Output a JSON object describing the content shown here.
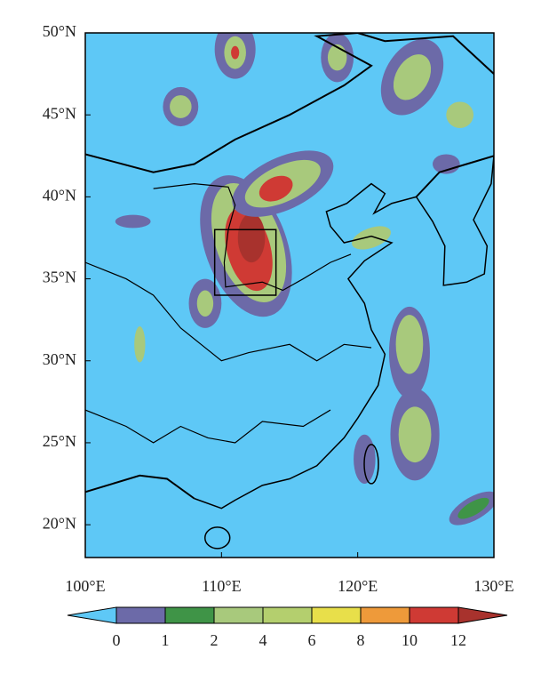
{
  "chart_data": {
    "type": "map",
    "xlim": [
      100,
      130
    ],
    "ylim": [
      18,
      50
    ],
    "xticks": [
      {
        "value": 100,
        "label": "100°E"
      },
      {
        "value": 110,
        "label": "110°E"
      },
      {
        "value": 120,
        "label": "120°E"
      },
      {
        "value": 130,
        "label": "130°E"
      }
    ],
    "yticks": [
      {
        "value": 20,
        "label": "20°N"
      },
      {
        "value": 25,
        "label": "25°N"
      },
      {
        "value": 30,
        "label": "30°N"
      },
      {
        "value": 35,
        "label": "35°N"
      },
      {
        "value": 40,
        "label": "40°N"
      },
      {
        "value": 45,
        "label": "45°N"
      },
      {
        "value": 50,
        "label": "50°N"
      }
    ],
    "colorbar": {
      "levels": [
        0,
        1,
        2,
        4,
        6,
        8,
        10,
        12
      ],
      "colors": [
        "#5ec8f6",
        "#6c6aa8",
        "#3f9447",
        "#a8c97c",
        "#b4cf6e",
        "#e8df4a",
        "#ee9a3a",
        "#cf3a34",
        "#a8322d"
      ]
    }
  }
}
